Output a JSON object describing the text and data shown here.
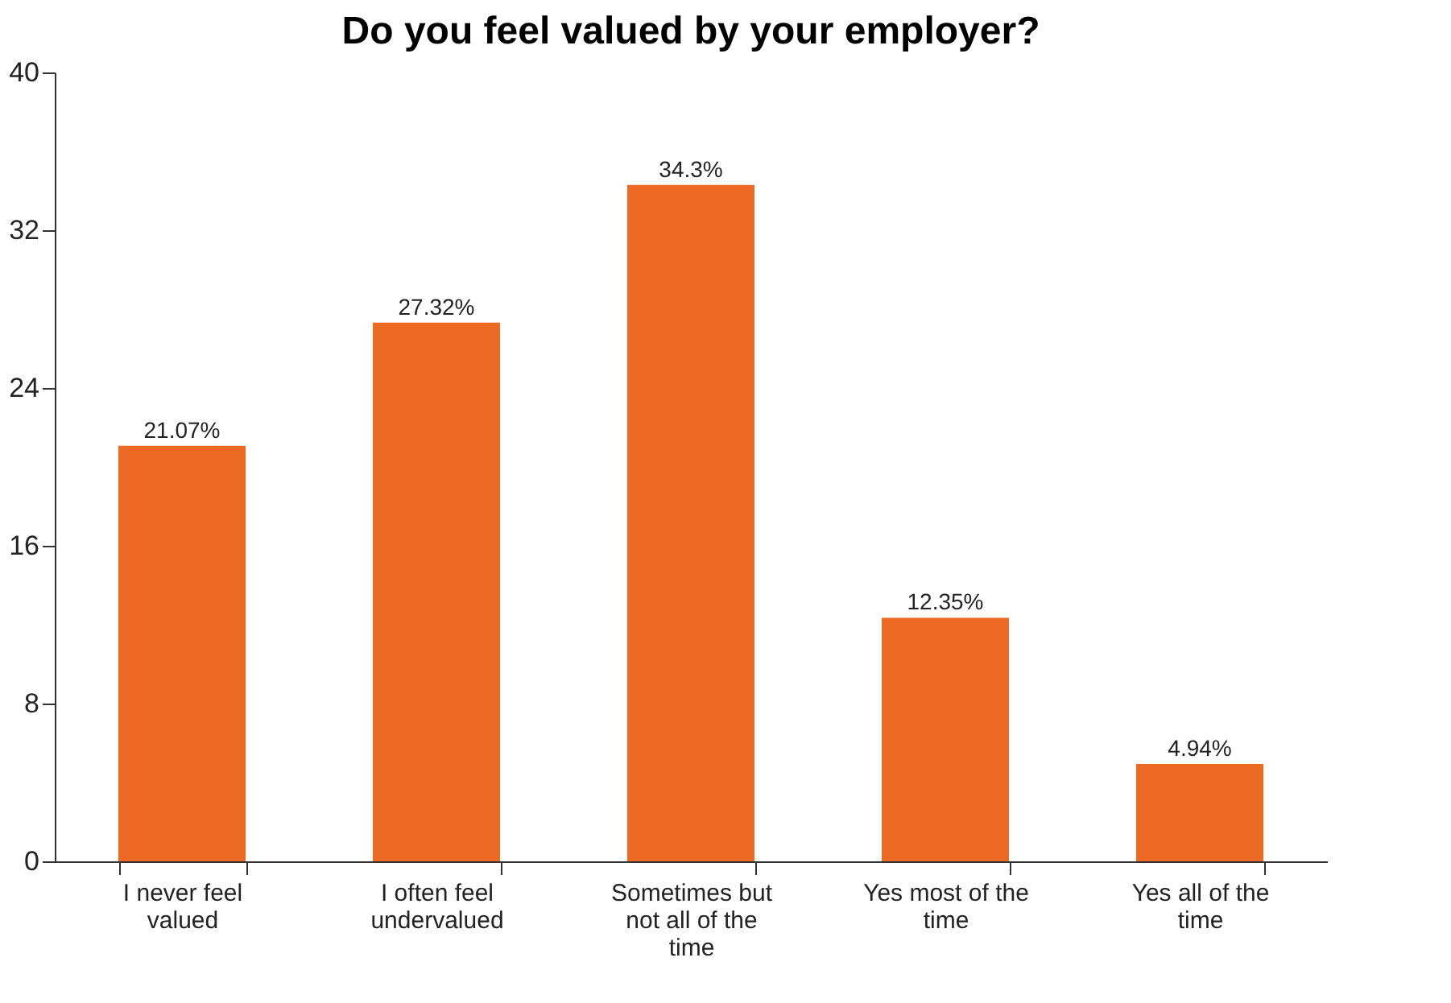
{
  "chart_data": {
    "type": "bar",
    "title": "Do you feel valued by your employer?",
    "categories": [
      "I never feel valued",
      "I often feel undervalued",
      "Sometimes but not all of the time",
      "Yes most of the time",
      "Yes all of the time"
    ],
    "values": [
      21.07,
      27.32,
      34.3,
      12.35,
      4.94
    ],
    "value_labels": [
      "21.07%",
      "27.32%",
      "34.3%",
      "12.35%",
      "4.94%"
    ],
    "color": "#ec6a23",
    "ylim": [
      0,
      40
    ],
    "yticks": [
      0,
      8,
      16,
      24,
      32,
      40
    ],
    "grid": false
  }
}
